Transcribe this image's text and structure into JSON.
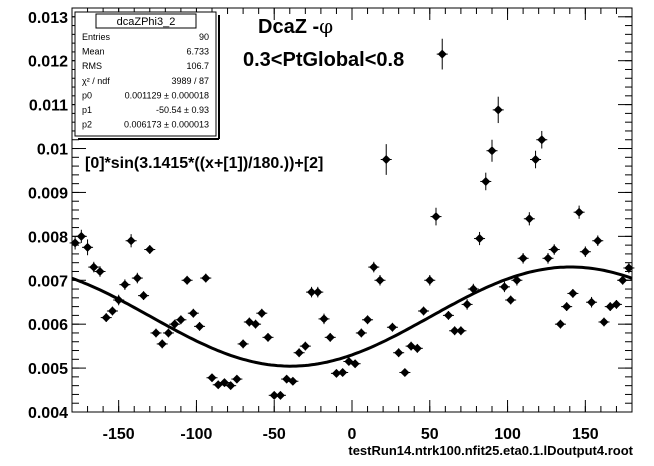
{
  "chart_data": {
    "type": "scatter",
    "title_line1": "DcaZ -",
    "title_phi": "φ",
    "title_line2": "0.3<PtGlobal<0.8",
    "fit_formula": "[0]*sin(3.1415*((x+[1])/180.))+[2]",
    "footer": "testRun14.ntrk100.nfit25.eta0.1.lDoutput4.root",
    "xlim": [
      -180,
      180
    ],
    "ylim": [
      0.004,
      0.0132
    ],
    "xticks": [
      -150,
      -100,
      -50,
      0,
      50,
      100,
      150
    ],
    "xtick_labels": [
      "-150",
      "-100",
      "-50",
      "0",
      "50",
      "100",
      "150"
    ],
    "yticks": [
      0.004,
      0.005,
      0.006,
      0.007,
      0.008,
      0.009,
      0.01,
      0.011,
      0.012,
      0.013
    ],
    "ytick_labels": [
      "0.004",
      "0.005",
      "0.006",
      "0.007",
      "0.008",
      "0.009",
      "0.01",
      "0.011",
      "0.012",
      "0.013"
    ],
    "stats": {
      "name": "dcaZPhi3_2",
      "rows": [
        {
          "label": "Entries",
          "value": "90"
        },
        {
          "label": "Mean",
          "value": "6.733"
        },
        {
          "label": "RMS",
          "value": "106.7"
        },
        {
          "label": "χ² / ndf",
          "value": "3989 / 87"
        },
        {
          "label": "p0",
          "value": "0.001129 ± 0.000018"
        },
        {
          "label": "p1",
          "value": "-50.54 ± 0.93"
        },
        {
          "label": "p2",
          "value": "0.006173 ± 0.000013"
        }
      ]
    },
    "fit": {
      "p0": 0.001129,
      "p1": -50.54,
      "p2": 0.006173
    },
    "points": [
      {
        "x": -178,
        "y": 0.00785,
        "e": 0.00015
      },
      {
        "x": -174,
        "y": 0.008,
        "e": 0.00015
      },
      {
        "x": -170,
        "y": 0.00775,
        "e": 0.00018
      },
      {
        "x": -166,
        "y": 0.0073,
        "e": 0.00012
      },
      {
        "x": -162,
        "y": 0.0072,
        "e": 0.00012
      },
      {
        "x": -158,
        "y": 0.00615,
        "e": 0.0001
      },
      {
        "x": -154,
        "y": 0.0063,
        "e": 0.0001
      },
      {
        "x": -150,
        "y": 0.00655,
        "e": 0.00012
      },
      {
        "x": -146,
        "y": 0.0069,
        "e": 0.00012
      },
      {
        "x": -142,
        "y": 0.0079,
        "e": 0.00015
      },
      {
        "x": -138,
        "y": 0.00705,
        "e": 0.00012
      },
      {
        "x": -134,
        "y": 0.00665,
        "e": 0.0001
      },
      {
        "x": -130,
        "y": 0.0077,
        "e": 0.0001
      },
      {
        "x": -126,
        "y": 0.0058,
        "e": 0.0001
      },
      {
        "x": -122,
        "y": 0.00555,
        "e": 0.0001
      },
      {
        "x": -118,
        "y": 0.0058,
        "e": 0.0001
      },
      {
        "x": -114,
        "y": 0.006,
        "e": 0.0001
      },
      {
        "x": -110,
        "y": 0.0061,
        "e": 0.0001
      },
      {
        "x": -106,
        "y": 0.007,
        "e": 0.0001
      },
      {
        "x": -102,
        "y": 0.00625,
        "e": 0.0001
      },
      {
        "x": -98,
        "y": 0.00595,
        "e": 0.0001
      },
      {
        "x": -94,
        "y": 0.00705,
        "e": 0.0001
      },
      {
        "x": -90,
        "y": 0.00478,
        "e": 8e-05
      },
      {
        "x": -86,
        "y": 0.00462,
        "e": 8e-05
      },
      {
        "x": -82,
        "y": 0.00467,
        "e": 8e-05
      },
      {
        "x": -78,
        "y": 0.0046,
        "e": 8e-05
      },
      {
        "x": -74,
        "y": 0.00475,
        "e": 8e-05
      },
      {
        "x": -70,
        "y": 0.00555,
        "e": 0.0001
      },
      {
        "x": -66,
        "y": 0.00605,
        "e": 0.0001
      },
      {
        "x": -62,
        "y": 0.006,
        "e": 0.0001
      },
      {
        "x": -58,
        "y": 0.00625,
        "e": 0.0001
      },
      {
        "x": -54,
        "y": 0.0057,
        "e": 0.0001
      },
      {
        "x": -50,
        "y": 0.00438,
        "e": 8e-05
      },
      {
        "x": -46,
        "y": 0.00438,
        "e": 8e-05
      },
      {
        "x": -42,
        "y": 0.00475,
        "e": 8e-05
      },
      {
        "x": -38,
        "y": 0.0047,
        "e": 8e-05
      },
      {
        "x": -34,
        "y": 0.00535,
        "e": 0.0001
      },
      {
        "x": -30,
        "y": 0.0055,
        "e": 0.0001
      },
      {
        "x": -26,
        "y": 0.00673,
        "e": 0.00012
      },
      {
        "x": -22,
        "y": 0.00673,
        "e": 0.00012
      },
      {
        "x": -18,
        "y": 0.00612,
        "e": 0.00012
      },
      {
        "x": -14,
        "y": 0.0057,
        "e": 0.0001
      },
      {
        "x": -10,
        "y": 0.00488,
        "e": 8e-05
      },
      {
        "x": -6,
        "y": 0.0049,
        "e": 8e-05
      },
      {
        "x": -2,
        "y": 0.00515,
        "e": 8e-05
      },
      {
        "x": 2,
        "y": 0.0051,
        "e": 8e-05
      },
      {
        "x": 6,
        "y": 0.0058,
        "e": 0.0001
      },
      {
        "x": 10,
        "y": 0.0061,
        "e": 0.0001
      },
      {
        "x": 14,
        "y": 0.0073,
        "e": 0.00012
      },
      {
        "x": 18,
        "y": 0.007,
        "e": 0.00012
      },
      {
        "x": 22,
        "y": 0.00975,
        "e": 0.00035
      },
      {
        "x": 26,
        "y": 0.00593,
        "e": 0.0001
      },
      {
        "x": 30,
        "y": 0.00535,
        "e": 0.0001
      },
      {
        "x": 34,
        "y": 0.0049,
        "e": 8e-05
      },
      {
        "x": 38,
        "y": 0.0055,
        "e": 0.0001
      },
      {
        "x": 42,
        "y": 0.00545,
        "e": 0.0001
      },
      {
        "x": 46,
        "y": 0.0063,
        "e": 0.0001
      },
      {
        "x": 50,
        "y": 0.007,
        "e": 0.00012
      },
      {
        "x": 54,
        "y": 0.00845,
        "e": 0.0002
      },
      {
        "x": 58,
        "y": 0.01215,
        "e": 0.00035
      },
      {
        "x": 62,
        "y": 0.0062,
        "e": 0.0001
      },
      {
        "x": 66,
        "y": 0.00585,
        "e": 0.0001
      },
      {
        "x": 70,
        "y": 0.00585,
        "e": 0.0001
      },
      {
        "x": 74,
        "y": 0.00645,
        "e": 0.00012
      },
      {
        "x": 78,
        "y": 0.0068,
        "e": 0.00012
      },
      {
        "x": 82,
        "y": 0.00795,
        "e": 0.00015
      },
      {
        "x": 86,
        "y": 0.00925,
        "e": 0.0002
      },
      {
        "x": 90,
        "y": 0.00995,
        "e": 0.00025
      },
      {
        "x": 94,
        "y": 0.01088,
        "e": 0.0003
      },
      {
        "x": 98,
        "y": 0.00685,
        "e": 0.00012
      },
      {
        "x": 102,
        "y": 0.00655,
        "e": 0.0001
      },
      {
        "x": 106,
        "y": 0.007,
        "e": 0.00012
      },
      {
        "x": 110,
        "y": 0.0075,
        "e": 0.00012
      },
      {
        "x": 114,
        "y": 0.0084,
        "e": 0.00015
      },
      {
        "x": 118,
        "y": 0.00975,
        "e": 0.0002
      },
      {
        "x": 122,
        "y": 0.0102,
        "e": 0.0002
      },
      {
        "x": 126,
        "y": 0.0075,
        "e": 0.00012
      },
      {
        "x": 130,
        "y": 0.0077,
        "e": 0.00012
      },
      {
        "x": 134,
        "y": 0.006,
        "e": 0.0001
      },
      {
        "x": 138,
        "y": 0.0064,
        "e": 0.0001
      },
      {
        "x": 142,
        "y": 0.0067,
        "e": 0.0001
      },
      {
        "x": 146,
        "y": 0.00855,
        "e": 0.00015
      },
      {
        "x": 150,
        "y": 0.00765,
        "e": 0.00012
      },
      {
        "x": 154,
        "y": 0.0065,
        "e": 0.00012
      },
      {
        "x": 158,
        "y": 0.0079,
        "e": 0.00012
      },
      {
        "x": 162,
        "y": 0.00605,
        "e": 0.0001
      },
      {
        "x": 166,
        "y": 0.0064,
        "e": 0.0001
      },
      {
        "x": 170,
        "y": 0.00645,
        "e": 0.0001
      },
      {
        "x": 174,
        "y": 0.007,
        "e": 0.0001
      },
      {
        "x": 178,
        "y": 0.00728,
        "e": 0.00012
      }
    ]
  }
}
